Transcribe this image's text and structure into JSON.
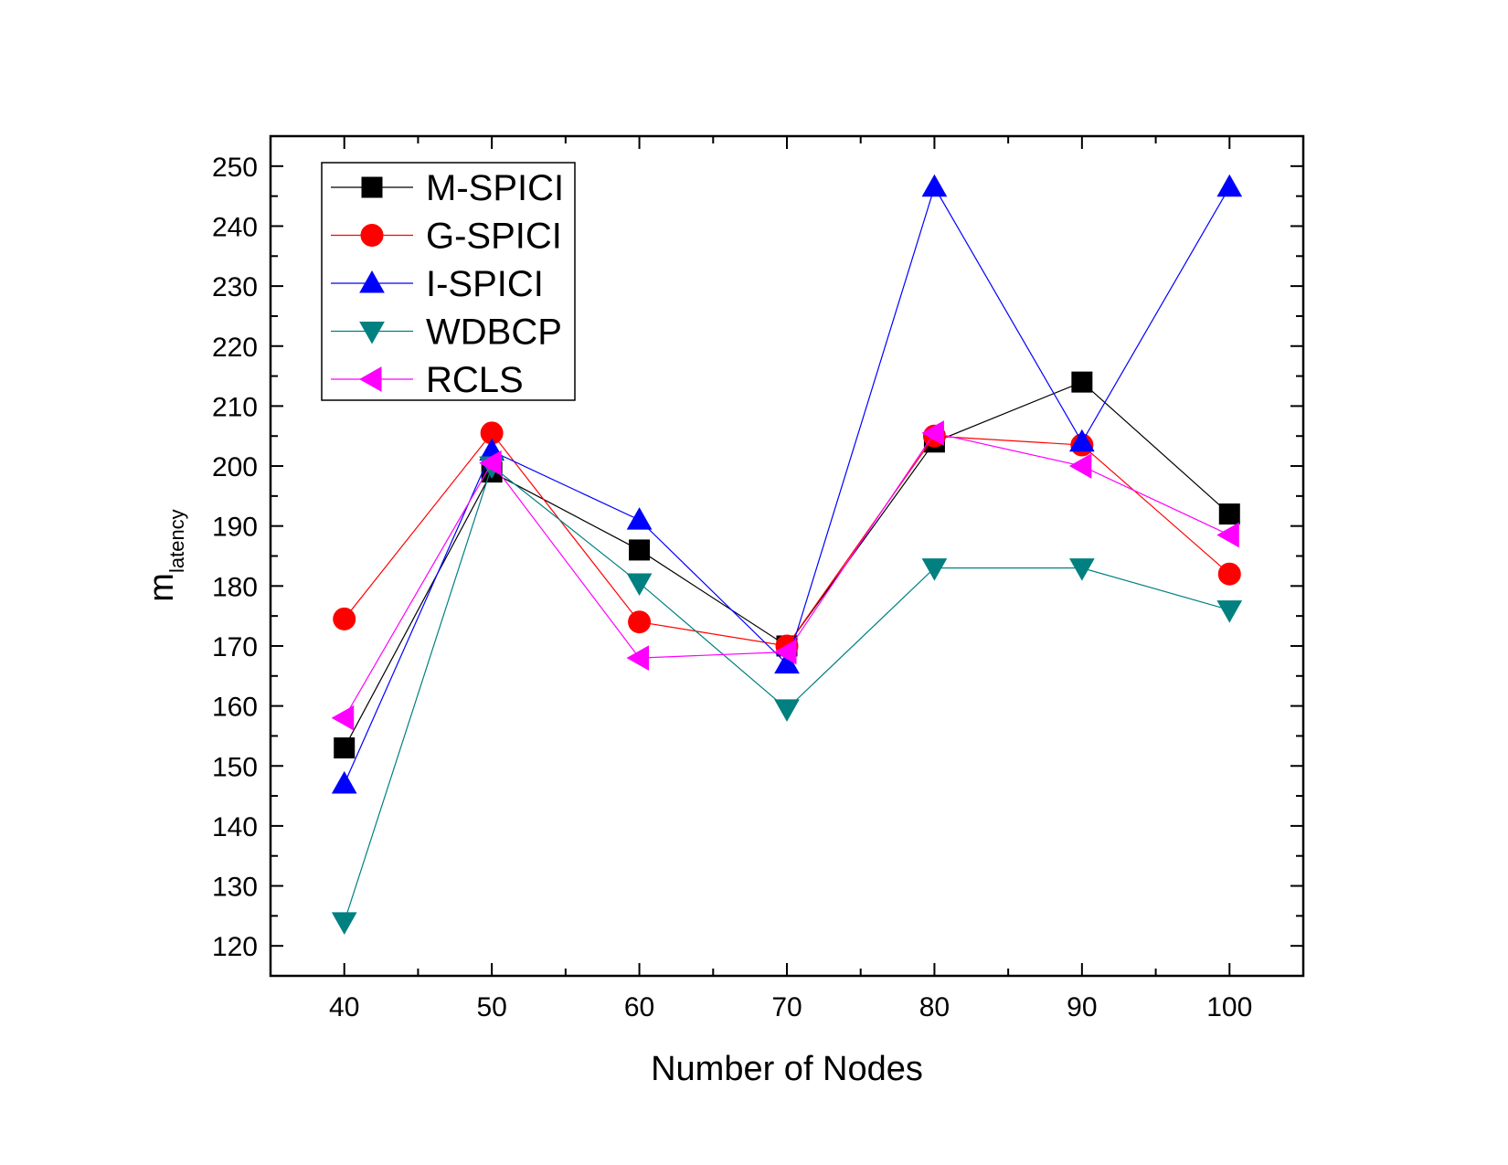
{
  "chart_data": {
    "type": "line",
    "title": "",
    "xlabel": "Number of Nodes",
    "ylabel": {
      "main": "m",
      "subscript": "latency"
    },
    "x": [
      40,
      50,
      60,
      70,
      80,
      90,
      100
    ],
    "xticks": [
      "40",
      "50",
      "60",
      "70",
      "80",
      "90",
      "100"
    ],
    "yticks": [
      "120",
      "130",
      "140",
      "150",
      "160",
      "170",
      "180",
      "190",
      "200",
      "210",
      "220",
      "230",
      "240",
      "250"
    ],
    "xlim": [
      35,
      105
    ],
    "ylim": [
      115,
      255
    ],
    "grid": false,
    "legend_position": "top-left",
    "series": [
      {
        "name": "M-SPICI",
        "color": "#000000",
        "marker": "square",
        "values": [
          153,
          199,
          186,
          170,
          204,
          214,
          192
        ]
      },
      {
        "name": "G-SPICI",
        "color": "#ff0000",
        "marker": "circle",
        "values": [
          174.5,
          205.5,
          174,
          170,
          205,
          203.5,
          182
        ]
      },
      {
        "name": "I-SPICI",
        "color": "#0000ff",
        "marker": "triangle-up",
        "values": [
          147,
          202.5,
          191,
          167,
          246.5,
          204,
          246.5
        ]
      },
      {
        "name": "WDBCP",
        "color": "#008080",
        "marker": "triangle-down",
        "values": [
          124,
          200,
          180.5,
          159.5,
          183,
          183,
          176
        ]
      },
      {
        "name": "RCLS",
        "color": "#ff00ff",
        "marker": "triangle-left",
        "values": [
          158,
          200.5,
          168,
          169,
          205.5,
          200,
          188.5
        ]
      }
    ]
  }
}
